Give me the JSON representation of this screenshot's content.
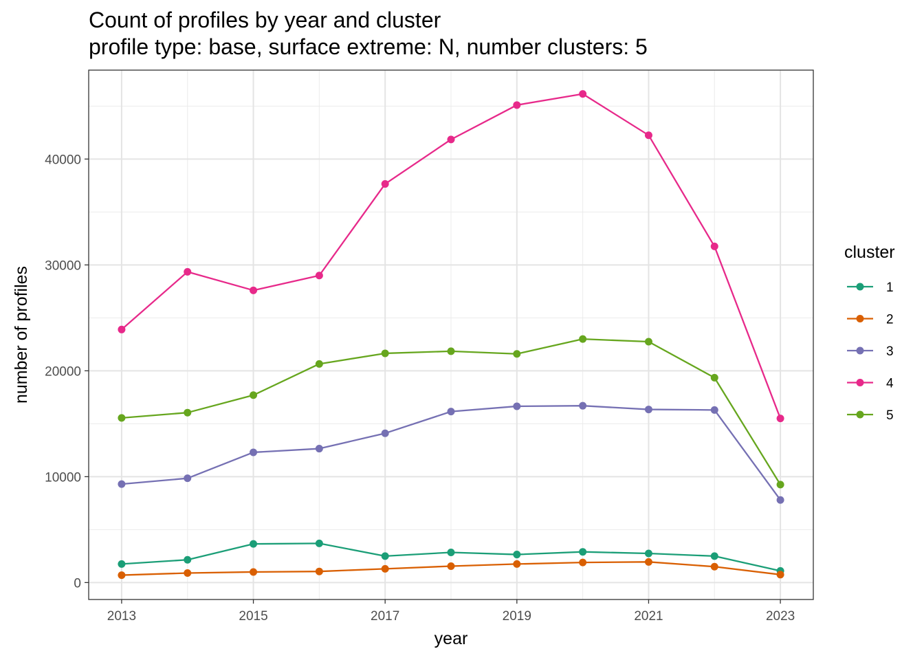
{
  "chart_data": {
    "type": "line",
    "title": "Count of profiles by year and cluster",
    "subtitle": "profile type: base, surface extreme: N, number clusters: 5",
    "xlabel": "year",
    "ylabel": "number of profiles",
    "x": [
      2013,
      2014,
      2015,
      2016,
      2017,
      2018,
      2019,
      2020,
      2021,
      2022,
      2023
    ],
    "x_ticks": [
      "2013",
      "2015",
      "2017",
      "2019",
      "2021",
      "2023"
    ],
    "y_ticks": [
      "0",
      "10000",
      "20000",
      "30000",
      "40000"
    ],
    "xlim": [
      2012.5,
      2023.5
    ],
    "ylim": [
      -1600,
      48400
    ],
    "grid": true,
    "legend_title": "cluster",
    "legend_position": "right",
    "series": [
      {
        "name": "1",
        "color": "#1b9e77",
        "values": [
          1750,
          2150,
          3650,
          3700,
          2500,
          2850,
          2650,
          2900,
          2750,
          2500,
          1100
        ]
      },
      {
        "name": "2",
        "color": "#d95f02",
        "values": [
          700,
          900,
          1000,
          1050,
          1300,
          1550,
          1750,
          1900,
          1950,
          1500,
          750
        ]
      },
      {
        "name": "3",
        "color": "#7570b3",
        "values": [
          9300,
          9850,
          12300,
          12650,
          14100,
          16150,
          16650,
          16700,
          16350,
          16300,
          7800
        ]
      },
      {
        "name": "4",
        "color": "#e7298a",
        "values": [
          23900,
          29350,
          27600,
          29000,
          37650,
          41850,
          45100,
          46150,
          42250,
          31750,
          15500
        ]
      },
      {
        "name": "5",
        "color": "#66a61e",
        "values": [
          15550,
          16050,
          17700,
          20650,
          21650,
          21850,
          21600,
          23000,
          22750,
          19350,
          9250
        ]
      }
    ]
  }
}
